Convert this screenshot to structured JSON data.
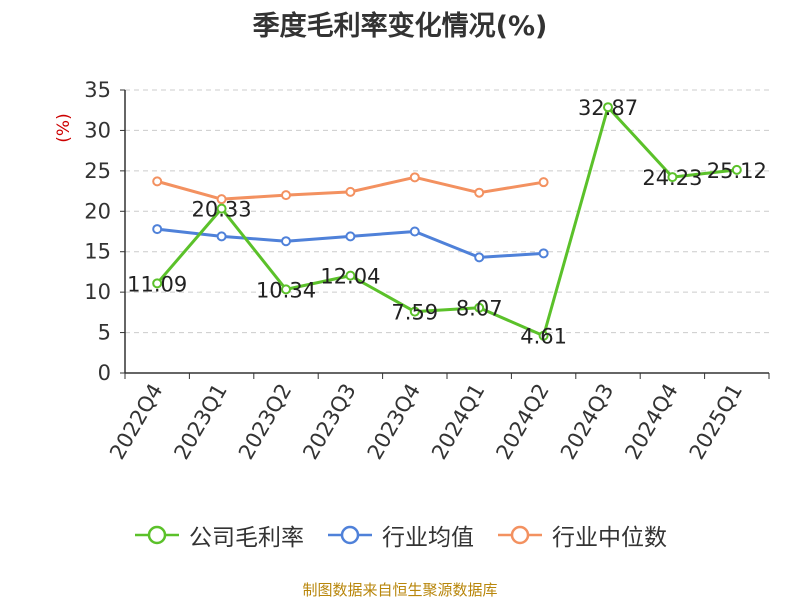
{
  "chart_data": {
    "type": "line",
    "title": "季度毛利率变化情况(%)",
    "ylabel": "(%)",
    "ylim": [
      0,
      35
    ],
    "yticks": [
      "0",
      "5",
      "10",
      "15",
      "20",
      "25",
      "30",
      "35"
    ],
    "categories": [
      "2022Q4",
      "2023Q1",
      "2023Q2",
      "2023Q3",
      "2023Q4",
      "2024Q1",
      "2024Q2",
      "2024Q3",
      "2024Q4",
      "2025Q1"
    ],
    "grid": true,
    "legend_position": "bottom",
    "series": [
      {
        "name": "公司毛利率",
        "color": "#5bc12a",
        "values": [
          11.09,
          20.33,
          10.34,
          12.04,
          7.59,
          8.07,
          4.61,
          32.87,
          24.23,
          25.12
        ],
        "labels": [
          "11.09",
          "20.33",
          "10.34",
          "12.04",
          "7.59",
          "8.07",
          "4.61",
          "32.87",
          "24.23",
          "25.12"
        ]
      },
      {
        "name": "行业均值",
        "color": "#4f81d9",
        "values": [
          17.8,
          16.9,
          16.3,
          16.9,
          17.5,
          14.3,
          14.8,
          null,
          null,
          null
        ]
      },
      {
        "name": "行业中位数",
        "color": "#f39160",
        "values": [
          23.7,
          21.5,
          22.0,
          22.4,
          24.2,
          22.3,
          23.6,
          null,
          null,
          null
        ]
      }
    ]
  },
  "footer": {
    "source": "制图数据来自恒生聚源数据库"
  }
}
